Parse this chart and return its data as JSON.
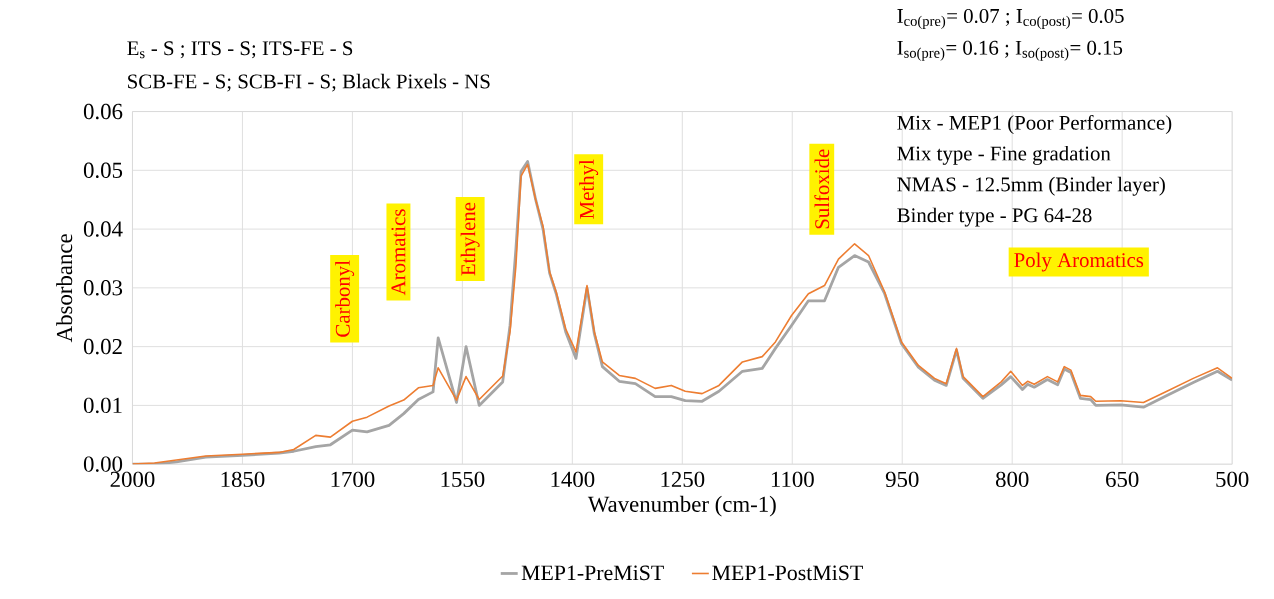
{
  "chart_data": {
    "type": "line",
    "xlabel": "Wavenumber (cm-1)",
    "ylabel": "Absorbance",
    "x": [
      2000,
      1970,
      1940,
      1900,
      1850,
      1800,
      1780,
      1750,
      1730,
      1700,
      1680,
      1650,
      1630,
      1610,
      1590,
      1583,
      1558,
      1545,
      1527,
      1495,
      1485,
      1477,
      1470,
      1461,
      1450,
      1440,
      1431,
      1422,
      1409,
      1395,
      1380,
      1370,
      1359,
      1336,
      1314,
      1287,
      1265,
      1246,
      1223,
      1200,
      1168,
      1141,
      1123,
      1101,
      1078,
      1056,
      1037,
      1015,
      996,
      974,
      951,
      928,
      906,
      890,
      876,
      867,
      840,
      815,
      802,
      786,
      779,
      770,
      752,
      738,
      729,
      720,
      707,
      693,
      686,
      652,
      621,
      589,
      553,
      520,
      500
    ],
    "series": [
      {
        "name": "MEP1-PreMiST",
        "color": "#a5a5a5",
        "values": [
          0,
          0,
          0.0004,
          0.0012,
          0.0015,
          0.0019,
          0.0022,
          0.003,
          0.0033,
          0.0058,
          0.0055,
          0.0066,
          0.0086,
          0.011,
          0.0123,
          0.0215,
          0.0105,
          0.02,
          0.01,
          0.014,
          0.0236,
          0.0366,
          0.0498,
          0.0515,
          0.045,
          0.04,
          0.0325,
          0.029,
          0.0225,
          0.018,
          0.03,
          0.0222,
          0.0166,
          0.0141,
          0.0137,
          0.0115,
          0.0115,
          0.0108,
          0.0107,
          0.0124,
          0.0158,
          0.0163,
          0.0197,
          0.0236,
          0.0278,
          0.0278,
          0.0335,
          0.0355,
          0.0344,
          0.029,
          0.0205,
          0.0165,
          0.0143,
          0.0134,
          0.0194,
          0.0146,
          0.0112,
          0.0135,
          0.0149,
          0.0127,
          0.0136,
          0.0131,
          0.0144,
          0.0135,
          0.0162,
          0.0156,
          0.0112,
          0.011,
          0.01,
          0.0101,
          0.0097,
          0.0117,
          0.0139,
          0.0158,
          0.0143
        ]
      },
      {
        "name": "MEP1-PostMiST",
        "color": "#ed7d31",
        "values": [
          0,
          0.0002,
          0.0007,
          0.0014,
          0.0017,
          0.002,
          0.0025,
          0.0049,
          0.0046,
          0.0073,
          0.008,
          0.0099,
          0.0109,
          0.013,
          0.0134,
          0.0164,
          0.0109,
          0.0149,
          0.011,
          0.015,
          0.0225,
          0.0337,
          0.049,
          0.051,
          0.045,
          0.0405,
          0.0327,
          0.0293,
          0.023,
          0.0191,
          0.0304,
          0.0225,
          0.0174,
          0.0151,
          0.0146,
          0.0129,
          0.0134,
          0.0124,
          0.012,
          0.0134,
          0.0174,
          0.0183,
          0.0208,
          0.0253,
          0.029,
          0.0304,
          0.0349,
          0.0375,
          0.0355,
          0.0293,
          0.0208,
          0.0168,
          0.0146,
          0.0137,
          0.0197,
          0.0149,
          0.0115,
          0.014,
          0.0158,
          0.0134,
          0.0141,
          0.0136,
          0.0149,
          0.014,
          0.0166,
          0.016,
          0.0117,
          0.0115,
          0.0107,
          0.0108,
          0.0105,
          0.0124,
          0.0146,
          0.0164,
          0.0146
        ]
      }
    ],
    "xlim": [
      2000,
      500
    ],
    "xticks": [
      2000,
      1850,
      1700,
      1550,
      1400,
      1250,
      1100,
      950,
      800,
      650,
      500
    ],
    "ylim": [
      0,
      0.06
    ],
    "yticks": [
      {
        "value": 0,
        "label": "0.00"
      },
      {
        "value": 0.01,
        "label": "0.01"
      },
      {
        "value": 0.02,
        "label": "0.02"
      },
      {
        "value": 0.03,
        "label": "0.03"
      },
      {
        "value": 0.04,
        "label": "0.04"
      },
      {
        "value": 0.05,
        "label": "0.05"
      },
      {
        "value": 0.06,
        "label": "0.06"
      }
    ],
    "grid": true,
    "legend": "bottom",
    "marker": "none",
    "line_style": "solid",
    "annotations": [
      "E$_{s}$ - S ; ITS - S; ITS-FE - S",
      "SCB-FE - S; SCB-FI - S; Black Pixels  - NS",
      "I$_{co(pre)}$= 0.07 ; I$_{co(post)}$= 0.05",
      "I$_{so(pre)}$= 0.16 ; I$_{so(post)}$= 0.15",
      "Mix - MEP1 (Poor Performance)",
      "Mix type - Fine gradation",
      "NMAS - 12.5mm (Binder layer)",
      "Binder type - PG 64-28",
      "Carbonyl",
      "Aromatics",
      "Ethylene",
      "Methyl",
      "Sulfoxide",
      "Poly Aromatics"
    ]
  }
}
